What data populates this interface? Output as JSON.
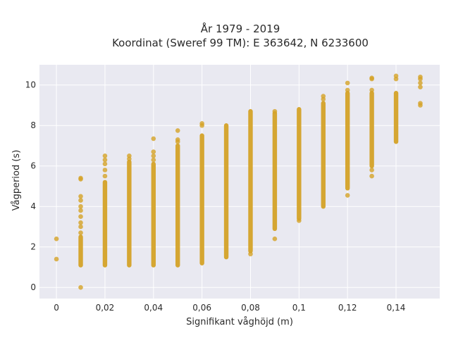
{
  "chart_data": {
    "type": "scatter",
    "title_line1": "År 1979 - 2019",
    "title_line2": "Koordinat (Sweref 99 TM): E 363642, N 6233600",
    "xlabel": "Signifikant våghöjd (m)",
    "ylabel": "Vågperiod (s)",
    "xlim": [
      -0.007,
      0.158
    ],
    "ylim": [
      -0.55,
      11.0
    ],
    "x_ticks": [
      0,
      0.02,
      0.04,
      0.06,
      0.08,
      0.1,
      0.12,
      0.14
    ],
    "x_tick_labels": [
      "0",
      "0,02",
      "0,04",
      "0,06",
      "0,08",
      "0,1",
      "0,12",
      "0,14"
    ],
    "y_ticks": [
      0,
      2,
      4,
      6,
      8,
      10
    ],
    "y_tick_labels": [
      "0",
      "2",
      "4",
      "6",
      "8",
      "10"
    ],
    "grid": true,
    "marker_color": "#d4a227",
    "plot_bg": "#e9e9f1",
    "columns": [
      {
        "x": 0,
        "range": null,
        "points": [
          1.4,
          2.4
        ]
      },
      {
        "x": 0.01,
        "range": [
          1.1,
          2.5
        ],
        "points": [
          0.0,
          2.7,
          3.0,
          3.2,
          3.5,
          3.8,
          4.0,
          4.3,
          4.5,
          5.35,
          5.4
        ]
      },
      {
        "x": 0.02,
        "range": [
          1.1,
          5.2
        ],
        "points": [
          5.5,
          5.8,
          6.1,
          6.3,
          6.5
        ]
      },
      {
        "x": 0.03,
        "range": [
          1.1,
          6.2
        ],
        "points": [
          6.35,
          6.5
        ]
      },
      {
        "x": 0.04,
        "range": [
          1.1,
          6.1
        ],
        "points": [
          6.3,
          6.5,
          6.7,
          7.35
        ]
      },
      {
        "x": 0.05,
        "range": [
          1.1,
          7.0
        ],
        "points": [
          7.2,
          7.3,
          7.75
        ]
      },
      {
        "x": 0.06,
        "range": [
          1.2,
          7.5
        ],
        "points": [
          8.0,
          8.1
        ]
      },
      {
        "x": 0.07,
        "range": [
          1.5,
          8.0
        ],
        "points": []
      },
      {
        "x": 0.08,
        "range": [
          1.8,
          8.7
        ],
        "points": [
          1.65
        ]
      },
      {
        "x": 0.09,
        "range": [
          2.9,
          8.6
        ],
        "points": [
          2.4,
          8.7
        ]
      },
      {
        "x": 0.1,
        "range": [
          3.4,
          8.8
        ],
        "points": [
          3.3
        ]
      },
      {
        "x": 0.11,
        "range": [
          4.0,
          9.1
        ],
        "points": [
          9.3,
          9.45
        ]
      },
      {
        "x": 0.12,
        "range": [
          4.9,
          9.6
        ],
        "points": [
          4.55,
          9.75,
          10.1
        ]
      },
      {
        "x": 0.13,
        "range": [
          6.0,
          9.6
        ],
        "points": [
          5.5,
          5.8,
          9.75,
          10.3,
          10.35
        ]
      },
      {
        "x": 0.14,
        "range": [
          7.2,
          9.6
        ],
        "points": [
          10.3,
          10.45
        ]
      },
      {
        "x": 0.15,
        "range": null,
        "points": [
          9.0,
          9.1,
          9.9,
          10.1,
          10.3,
          10.4
        ]
      }
    ]
  }
}
